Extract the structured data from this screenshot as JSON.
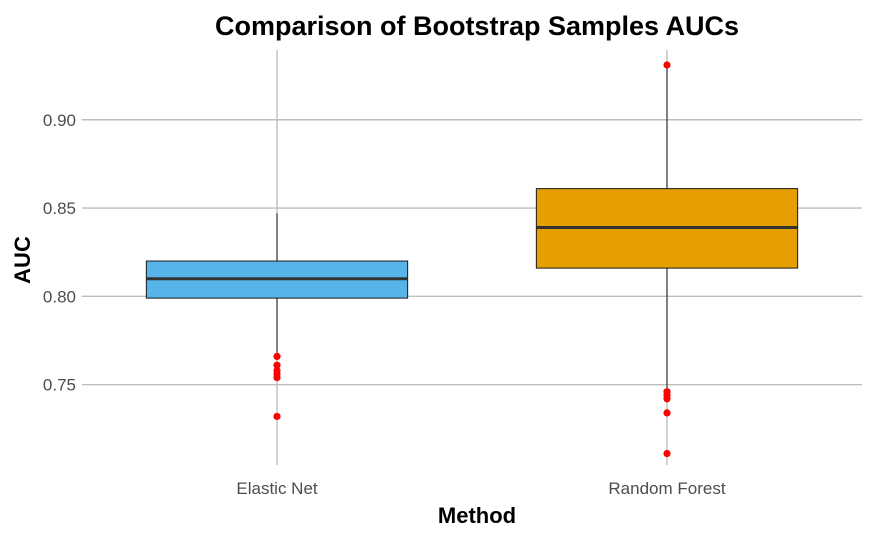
{
  "chart_data": {
    "type": "boxplot",
    "title": "Comparison of Bootstrap Samples AUCs",
    "xlabel": "Method",
    "ylabel": "AUC",
    "categories": [
      "Elastic Net",
      "Random Forest"
    ],
    "ylim": [
      0.7045,
      0.9395
    ],
    "yticks": [
      0.75,
      0.8,
      0.85,
      0.9
    ],
    "ytick_labels": [
      "0.75",
      "0.80",
      "0.85",
      "0.90"
    ],
    "grid": true,
    "legend": "none",
    "boxes": [
      {
        "category": "Elastic Net",
        "whisker_low": 0.768,
        "q1": 0.799,
        "median": 0.81,
        "q3": 0.82,
        "whisker_high": 0.847,
        "outliers": [
          0.766,
          0.761,
          0.758,
          0.756,
          0.754,
          0.732
        ],
        "fill": "#56B4E9"
      },
      {
        "category": "Random Forest",
        "whisker_low": 0.748,
        "q1": 0.816,
        "median": 0.839,
        "q3": 0.861,
        "whisker_high": 0.929,
        "outliers": [
          0.931,
          0.746,
          0.744,
          0.742,
          0.734,
          0.711
        ],
        "fill": "#E69F00"
      }
    ],
    "outlier_color": "#FF0000",
    "grid_color": "#BEBEBE"
  }
}
